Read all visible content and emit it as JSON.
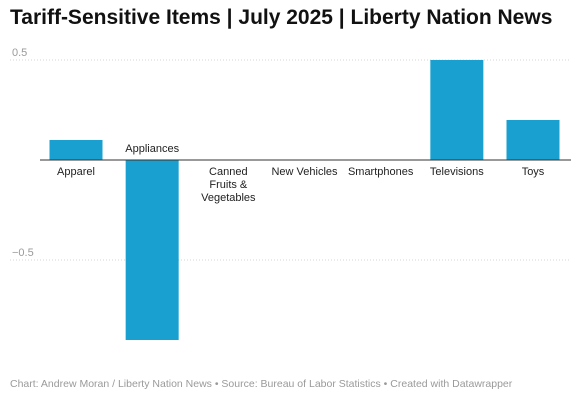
{
  "chart_data": {
    "type": "bar",
    "title": "Tariff-Sensitive Items | July 2025 | Liberty Nation News",
    "categories": [
      "Apparel",
      "Appliances",
      "Canned Fruits & Vegetables",
      "New Vehicles",
      "Smartphones",
      "Televisions",
      "Toys"
    ],
    "category_label_lines": [
      [
        "Apparel"
      ],
      [
        "Appliances"
      ],
      [
        "Canned",
        "Fruits &",
        "Vegetables"
      ],
      [
        "New Vehicles"
      ],
      [
        "Smartphones"
      ],
      [
        "Televisions"
      ],
      [
        "Toys"
      ]
    ],
    "values": [
      0.1,
      -0.9,
      0.0,
      0.0,
      0.0,
      0.5,
      0.2
    ],
    "ylim": [
      -0.9,
      0.5
    ],
    "yticks": [
      0.5,
      0,
      -0.5
    ],
    "ytick_labels": [
      "0.5",
      "",
      "−0.5"
    ],
    "xlabel": "",
    "ylabel": "",
    "grid": true,
    "bar_color": "#1aa0d0"
  },
  "footer": "Chart: Andrew Moran / Liberty Nation News • Source: Bureau of Labor Statistics • Created with Datawrapper"
}
